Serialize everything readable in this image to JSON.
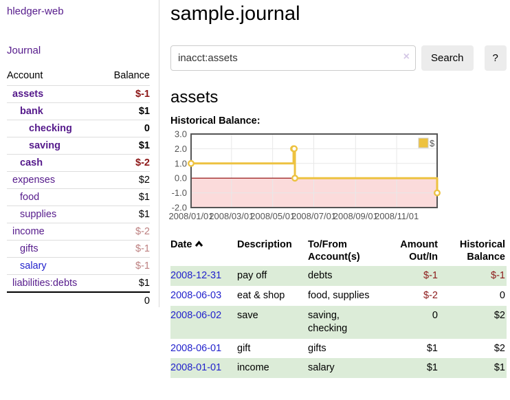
{
  "colors": {
    "accent_purple": "#551a8b",
    "link_blue": "#2222cc",
    "negative_strong": "#8c1616",
    "negative_soft": "#bd8080",
    "row_green": "#dcecd8"
  },
  "sidebar": {
    "brand": "hledger-web",
    "nav_journal": "Journal",
    "header": {
      "account": "Account",
      "balance": "Balance"
    },
    "accounts": [
      {
        "name": "assets",
        "balance": "$-1",
        "level": 1,
        "bold": true,
        "balance_class": "neg-strong"
      },
      {
        "name": "bank",
        "balance": "$1",
        "level": 2,
        "bold": true,
        "balance_class": ""
      },
      {
        "name": "checking",
        "balance": "0",
        "level": 3,
        "bold": true,
        "balance_class": ""
      },
      {
        "name": "saving",
        "balance": "$1",
        "level": 3,
        "bold": true,
        "balance_class": ""
      },
      {
        "name": "cash",
        "balance": "$-2",
        "level": 2,
        "bold": true,
        "balance_class": "neg-strong"
      },
      {
        "name": "expenses",
        "balance": "$2",
        "level": 1,
        "bold": false,
        "balance_class": ""
      },
      {
        "name": "food",
        "balance": "$1",
        "level": 2,
        "bold": false,
        "balance_class": ""
      },
      {
        "name": "supplies",
        "balance": "$1",
        "level": 2,
        "bold": false,
        "balance_class": ""
      },
      {
        "name": "income",
        "balance": "$-2",
        "level": 1,
        "bold": false,
        "balance_class": "neg-soft"
      },
      {
        "name": "gifts",
        "balance": "$-1",
        "level": 2,
        "bold": false,
        "balance_class": "neg-soft"
      },
      {
        "name": "salary",
        "balance": "$-1",
        "level": 2,
        "bold": false,
        "balance_class": "neg-soft",
        "blue": true
      },
      {
        "name": "liabilities:debts",
        "balance": "$1",
        "level": 1,
        "bold": false,
        "balance_class": ""
      }
    ],
    "total": "0"
  },
  "main": {
    "title": "sample.journal",
    "search": {
      "value": "inacct:assets",
      "clear_icon": "×",
      "button_label": "Search",
      "help_label": "?"
    },
    "account_heading": "assets",
    "chart_label": "Historical Balance:"
  },
  "chart_data": {
    "type": "line",
    "style": "steps",
    "series": [
      {
        "name": "$",
        "color": "#EDC240",
        "points": [
          [
            "2008-01-01",
            1
          ],
          [
            "2008-06-01",
            2
          ],
          [
            "2008-06-02",
            2
          ],
          [
            "2008-06-03",
            0
          ],
          [
            "2008-12-31",
            -1
          ]
        ]
      }
    ],
    "x_ticks": [
      "2008/01/01",
      "2008/03/01",
      "2008/05/01",
      "2008/07/01",
      "2008/09/01",
      "2008/11/01"
    ],
    "y_ticks": [
      3.0,
      2.0,
      1.0,
      0.0,
      -1.0,
      -2.0
    ],
    "ylim": [
      -2,
      3
    ],
    "xlim": [
      "2008-01-01",
      "2008-12-31"
    ],
    "grid": true,
    "legend_position": "top-right",
    "legend_label": "$",
    "negative_region_color": "#fbdbdb",
    "zero_line_color": "#8b0000",
    "border_color": "#545454",
    "grid_color": "#e8e8e8"
  },
  "transactions": {
    "headers": [
      {
        "label": "Date",
        "sort": true
      },
      {
        "label": "Description"
      },
      {
        "label": "To/From Account(s)"
      },
      {
        "label": "Amount Out/In",
        "align": "right"
      },
      {
        "label": "Historical Balance",
        "align": "right"
      }
    ],
    "rows": [
      {
        "date": "2008-12-31",
        "description": "pay off",
        "accounts": "debts",
        "amount": "$-1",
        "amount_neg": true,
        "balance": "$-1",
        "balance_neg": true
      },
      {
        "date": "2008-06-03",
        "description": "eat & shop",
        "accounts": "food, supplies",
        "amount": "$-2",
        "amount_neg": true,
        "balance": "0",
        "balance_neg": false
      },
      {
        "date": "2008-06-02",
        "description": "save",
        "accounts": "saving, checking",
        "amount": "0",
        "amount_neg": false,
        "balance": "$2",
        "balance_neg": false
      },
      {
        "date": "2008-06-01",
        "description": "gift",
        "accounts": "gifts",
        "amount": "$1",
        "amount_neg": false,
        "balance": "$2",
        "balance_neg": false
      },
      {
        "date": "2008-01-01",
        "description": "income",
        "accounts": "salary",
        "amount": "$1",
        "amount_neg": false,
        "balance": "$1",
        "balance_neg": false
      }
    ]
  }
}
